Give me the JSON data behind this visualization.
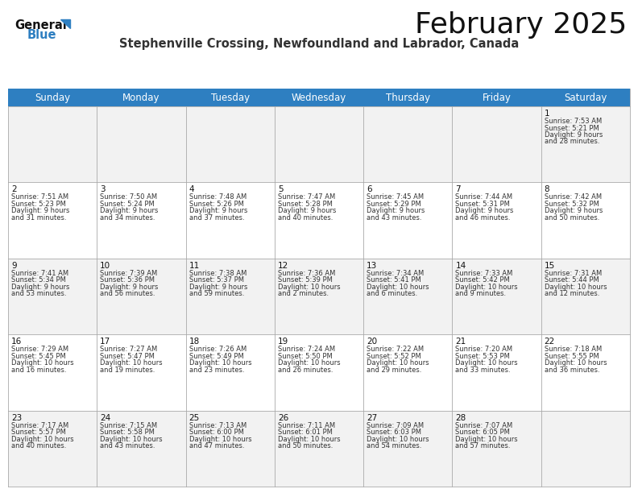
{
  "title": "February 2025",
  "subtitle": "Stephenville Crossing, Newfoundland and Labrador, Canada",
  "days_of_week": [
    "Sunday",
    "Monday",
    "Tuesday",
    "Wednesday",
    "Thursday",
    "Friday",
    "Saturday"
  ],
  "header_bg": "#2e7fc1",
  "header_text": "#ffffff",
  "row_bg_even": "#f2f2f2",
  "row_bg_odd": "#ffffff",
  "grid_line_color": "#aaaaaa",
  "cell_text_color": "#333333",
  "day_num_color": "#111111",
  "calendar_data": [
    [
      null,
      null,
      null,
      null,
      null,
      null,
      {
        "day": 1,
        "sunrise": "7:53 AM",
        "sunset": "5:21 PM",
        "daylight": "9 hours and 28 minutes."
      }
    ],
    [
      {
        "day": 2,
        "sunrise": "7:51 AM",
        "sunset": "5:23 PM",
        "daylight": "9 hours and 31 minutes."
      },
      {
        "day": 3,
        "sunrise": "7:50 AM",
        "sunset": "5:24 PM",
        "daylight": "9 hours and 34 minutes."
      },
      {
        "day": 4,
        "sunrise": "7:48 AM",
        "sunset": "5:26 PM",
        "daylight": "9 hours and 37 minutes."
      },
      {
        "day": 5,
        "sunrise": "7:47 AM",
        "sunset": "5:28 PM",
        "daylight": "9 hours and 40 minutes."
      },
      {
        "day": 6,
        "sunrise": "7:45 AM",
        "sunset": "5:29 PM",
        "daylight": "9 hours and 43 minutes."
      },
      {
        "day": 7,
        "sunrise": "7:44 AM",
        "sunset": "5:31 PM",
        "daylight": "9 hours and 46 minutes."
      },
      {
        "day": 8,
        "sunrise": "7:42 AM",
        "sunset": "5:32 PM",
        "daylight": "9 hours and 50 minutes."
      }
    ],
    [
      {
        "day": 9,
        "sunrise": "7:41 AM",
        "sunset": "5:34 PM",
        "daylight": "9 hours and 53 minutes."
      },
      {
        "day": 10,
        "sunrise": "7:39 AM",
        "sunset": "5:36 PM",
        "daylight": "9 hours and 56 minutes."
      },
      {
        "day": 11,
        "sunrise": "7:38 AM",
        "sunset": "5:37 PM",
        "daylight": "9 hours and 59 minutes."
      },
      {
        "day": 12,
        "sunrise": "7:36 AM",
        "sunset": "5:39 PM",
        "daylight": "10 hours and 2 minutes."
      },
      {
        "day": 13,
        "sunrise": "7:34 AM",
        "sunset": "5:41 PM",
        "daylight": "10 hours and 6 minutes."
      },
      {
        "day": 14,
        "sunrise": "7:33 AM",
        "sunset": "5:42 PM",
        "daylight": "10 hours and 9 minutes."
      },
      {
        "day": 15,
        "sunrise": "7:31 AM",
        "sunset": "5:44 PM",
        "daylight": "10 hours and 12 minutes."
      }
    ],
    [
      {
        "day": 16,
        "sunrise": "7:29 AM",
        "sunset": "5:45 PM",
        "daylight": "10 hours and 16 minutes."
      },
      {
        "day": 17,
        "sunrise": "7:27 AM",
        "sunset": "5:47 PM",
        "daylight": "10 hours and 19 minutes."
      },
      {
        "day": 18,
        "sunrise": "7:26 AM",
        "sunset": "5:49 PM",
        "daylight": "10 hours and 23 minutes."
      },
      {
        "day": 19,
        "sunrise": "7:24 AM",
        "sunset": "5:50 PM",
        "daylight": "10 hours and 26 minutes."
      },
      {
        "day": 20,
        "sunrise": "7:22 AM",
        "sunset": "5:52 PM",
        "daylight": "10 hours and 29 minutes."
      },
      {
        "day": 21,
        "sunrise": "7:20 AM",
        "sunset": "5:53 PM",
        "daylight": "10 hours and 33 minutes."
      },
      {
        "day": 22,
        "sunrise": "7:18 AM",
        "sunset": "5:55 PM",
        "daylight": "10 hours and 36 minutes."
      }
    ],
    [
      {
        "day": 23,
        "sunrise": "7:17 AM",
        "sunset": "5:57 PM",
        "daylight": "10 hours and 40 minutes."
      },
      {
        "day": 24,
        "sunrise": "7:15 AM",
        "sunset": "5:58 PM",
        "daylight": "10 hours and 43 minutes."
      },
      {
        "day": 25,
        "sunrise": "7:13 AM",
        "sunset": "6:00 PM",
        "daylight": "10 hours and 47 minutes."
      },
      {
        "day": 26,
        "sunrise": "7:11 AM",
        "sunset": "6:01 PM",
        "daylight": "10 hours and 50 minutes."
      },
      {
        "day": 27,
        "sunrise": "7:09 AM",
        "sunset": "6:03 PM",
        "daylight": "10 hours and 54 minutes."
      },
      {
        "day": 28,
        "sunrise": "7:07 AM",
        "sunset": "6:05 PM",
        "daylight": "10 hours and 57 minutes."
      },
      null
    ]
  ]
}
